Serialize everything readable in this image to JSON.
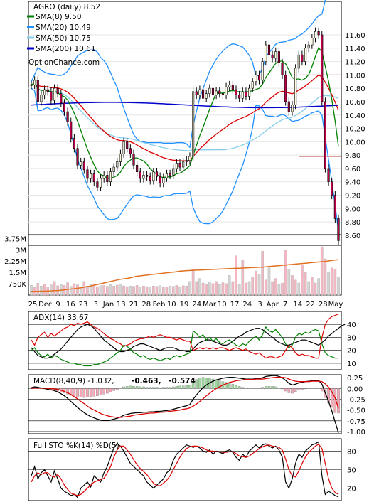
{
  "chart_data": [
    {
      "type": "candlestick",
      "title": "AGRO (daily) 8.52",
      "watermark": "OptionChance.com",
      "ylim": [
        8.45,
        12.1
      ],
      "y_ticks": [
        "11.60",
        "11.40",
        "11.20",
        "11.00",
        "10.80",
        "10.60",
        "10.40",
        "10.20",
        "10.00",
        "9.80",
        "9.60",
        "9.40",
        "9.20",
        "9.00",
        "8.80",
        "8.60"
      ],
      "grid": true,
      "legend_position": "top-left",
      "legend": [
        {
          "label": "SMA(8) 9.50",
          "color": "#008000"
        },
        {
          "label": "SMA(20) 10.49",
          "color": "#1e90ff"
        },
        {
          "label": "SMA(50) 10.75",
          "color": "#87ceeb"
        },
        {
          "label": "SMA(200) 10.61",
          "color": "#0000cd"
        }
      ],
      "reference_lines": [
        11.0,
        9.78
      ],
      "ohlc_close": [
        10.85,
        10.92,
        10.6,
        10.7,
        10.78,
        10.75,
        10.62,
        10.8,
        10.72,
        10.58,
        10.45,
        10.3,
        10.05,
        9.9,
        9.65,
        9.7,
        9.58,
        9.45,
        9.52,
        9.4,
        9.32,
        9.45,
        9.5,
        9.4,
        9.55,
        9.62,
        9.7,
        9.82,
        10.0,
        9.9,
        9.82,
        9.65,
        9.55,
        9.45,
        9.5,
        9.48,
        9.42,
        9.55,
        9.48,
        9.38,
        9.46,
        9.52,
        9.5,
        9.6,
        9.68,
        9.62,
        9.7,
        9.72,
        9.78,
        10.75,
        10.7,
        10.78,
        10.65,
        10.72,
        10.8,
        10.7,
        10.76,
        10.72,
        10.7,
        10.82,
        10.85,
        10.78,
        10.7,
        10.65,
        10.75,
        10.68,
        10.8,
        10.9,
        11.0,
        10.92,
        11.2,
        11.45,
        11.3,
        11.25,
        11.35,
        11.18,
        11.0,
        10.6,
        10.45,
        10.55,
        11.1,
        11.3,
        11.2,
        11.4,
        11.45,
        11.55,
        11.65,
        11.6,
        10.6,
        9.6,
        9.4,
        9.2,
        8.85,
        8.52
      ]
    },
    {
      "type": "bar",
      "title": "Volume",
      "y_ticks": [
        "3.75M",
        "3M",
        "2.25M",
        "1.5M",
        "750K"
      ],
      "ylim": [
        0,
        4000000
      ],
      "moving_average_color": "#e07020",
      "values": [
        650000,
        500000,
        780000,
        600000,
        720000,
        550000,
        680000,
        900000,
        620000,
        700000,
        640000,
        820000,
        580000,
        760000,
        680000,
        540000,
        900000,
        600000,
        700000,
        750000,
        560000,
        620000,
        640000,
        580000,
        700000,
        600000,
        660000,
        720000,
        610000,
        560000,
        600000,
        580000,
        640000,
        520000,
        600000,
        560000,
        540000,
        600000,
        580000,
        620000,
        560000,
        540000,
        600000,
        580000,
        640000,
        560000,
        620000,
        600000,
        900000,
        1700000,
        900000,
        1100000,
        800000,
        700000,
        860000,
        760000,
        900000,
        700000,
        820000,
        760000,
        1300000,
        900000,
        2600000,
        700000,
        2300000,
        800000,
        900000,
        1200000,
        1600000,
        1400000,
        2900000,
        1000000,
        1800000,
        900000,
        1100000,
        700000,
        800000,
        3000000,
        1700000,
        1300000,
        1000000,
        800000,
        2000000,
        1500000,
        900000,
        1200000,
        800000,
        1100000,
        3200000,
        2400000,
        1500000,
        1800000,
        1700000,
        1200000
      ],
      "ma_values": [
        250000,
        250000,
        250000,
        260000,
        260000,
        270000,
        280000,
        290000,
        300000,
        320000,
        350000,
        380000,
        400000,
        420000,
        450000,
        480000,
        520000,
        560000,
        600000,
        650000,
        700000,
        750000,
        800000,
        850000,
        900000,
        950000,
        1000000,
        1050000,
        1080000,
        1100000,
        1150000,
        1200000,
        1250000,
        1270000,
        1300000,
        1320000,
        1350000,
        1380000,
        1400000,
        1420000,
        1450000,
        1480000,
        1500000,
        1520000,
        1550000,
        1580000,
        1600000,
        1620000,
        1630000,
        1640000,
        1650000,
        1660000,
        1670000,
        1680000,
        1690000,
        1700000,
        1710000,
        1720000,
        1730000,
        1740000,
        1750000,
        1760000,
        1770000,
        1780000,
        1790000,
        1800000,
        1810000,
        1820000,
        1830000,
        1840000,
        1850000,
        1870000,
        1890000,
        1910000,
        1930000,
        1950000,
        1970000,
        1990000,
        2010000,
        2030000,
        2050000,
        2070000,
        2090000,
        2110000,
        2130000,
        2150000,
        2170000,
        2190000,
        2210000,
        2230000,
        2260000,
        2290000,
        2320000,
        2350000
      ]
    },
    {
      "type": "line",
      "title": "ADX(14) 33.67",
      "ylim": [
        5,
        50
      ],
      "y_ticks": [
        "40",
        "30",
        "20",
        "10"
      ],
      "series": [
        {
          "name": "ADX",
          "color": "#000000",
          "values": [
            22,
            19,
            16,
            15,
            14,
            14,
            15,
            17,
            19,
            21,
            24,
            27,
            30,
            33,
            36,
            38,
            39,
            40,
            39,
            37,
            34,
            31,
            28,
            26,
            24,
            22,
            20,
            19,
            19,
            20,
            21,
            23,
            24,
            25,
            25,
            24,
            23,
            22,
            21,
            20,
            21,
            22,
            22,
            22,
            21,
            20,
            20,
            19,
            19,
            21,
            24,
            26,
            27,
            28,
            28,
            27,
            26,
            25,
            24,
            24,
            25,
            27,
            29,
            31,
            32,
            34,
            35,
            36,
            37,
            37,
            36,
            34,
            32,
            30,
            28,
            26,
            25,
            24,
            24,
            25,
            26,
            27,
            28,
            28,
            27,
            26,
            25,
            24,
            26,
            28,
            31,
            33,
            35,
            37,
            39,
            40
          ]
        },
        {
          "name": "+DI",
          "color": "#008000",
          "values": [
            20,
            22,
            18,
            16,
            15,
            17,
            14,
            16,
            15,
            13,
            12,
            11,
            10,
            10,
            9,
            9,
            8,
            8,
            8,
            9,
            9,
            10,
            11,
            12,
            14,
            16,
            18,
            20,
            24,
            23,
            21,
            18,
            17,
            15,
            16,
            14,
            13,
            14,
            13,
            12,
            13,
            14,
            13,
            15,
            16,
            15,
            16,
            17,
            18,
            35,
            33,
            30,
            32,
            28,
            30,
            27,
            29,
            26,
            25,
            27,
            28,
            26,
            24,
            23,
            25,
            24,
            27,
            29,
            31,
            28,
            32,
            38,
            35,
            34,
            36,
            33,
            30,
            25,
            22,
            24,
            30,
            33,
            32,
            34,
            33,
            35,
            36,
            35,
            25,
            18,
            16,
            15,
            14,
            14
          ]
        },
        {
          "name": "-DI",
          "color": "#dd0000",
          "values": [
            28,
            24,
            30,
            32,
            34,
            30,
            33,
            31,
            33,
            35,
            37,
            38,
            40,
            39,
            41,
            40,
            41,
            42,
            40,
            38,
            37,
            35,
            33,
            31,
            29,
            28,
            26,
            25,
            23,
            24,
            25,
            27,
            28,
            29,
            29,
            30,
            31,
            30,
            31,
            32,
            31,
            30,
            30,
            29,
            28,
            29,
            28,
            27,
            27,
            20,
            21,
            22,
            21,
            22,
            21,
            22,
            21,
            22,
            22,
            21,
            20,
            21,
            22,
            21,
            20,
            21,
            19,
            18,
            17,
            18,
            16,
            14,
            15,
            15,
            14,
            15,
            16,
            20,
            24,
            22,
            18,
            16,
            17,
            16,
            16,
            15,
            14,
            14,
            30,
            40,
            44,
            46,
            47,
            48
          ]
        }
      ]
    },
    {
      "type": "bar",
      "title": "MACD(8,40,9) -1.032, -0.463, -0.574",
      "title_parts": [
        "MACD(8,40,9) -1.032,",
        "-0.463,",
        "-0.574"
      ],
      "ylim": [
        -1.05,
        0.32
      ],
      "y_ticks": [
        "0.25",
        "0.00",
        "-0.25",
        "-0.50",
        "-0.75",
        "-1.00"
      ],
      "series": [
        {
          "name": "MACD",
          "color": "#000000",
          "values": [
            0.02,
            0.04,
            0.03,
            0.01,
            0.0,
            -0.02,
            -0.03,
            -0.05,
            -0.08,
            -0.12,
            -0.17,
            -0.23,
            -0.3,
            -0.37,
            -0.44,
            -0.5,
            -0.56,
            -0.61,
            -0.65,
            -0.68,
            -0.71,
            -0.73,
            -0.74,
            -0.74,
            -0.73,
            -0.71,
            -0.69,
            -0.66,
            -0.62,
            -0.6,
            -0.58,
            -0.57,
            -0.56,
            -0.56,
            -0.55,
            -0.55,
            -0.54,
            -0.54,
            -0.53,
            -0.53,
            -0.52,
            -0.51,
            -0.5,
            -0.48,
            -0.46,
            -0.44,
            -0.42,
            -0.4,
            -0.37,
            -0.25,
            -0.15,
            -0.06,
            0.02,
            0.08,
            0.13,
            0.17,
            0.2,
            0.22,
            0.24,
            0.25,
            0.26,
            0.26,
            0.25,
            0.24,
            0.23,
            0.22,
            0.22,
            0.22,
            0.23,
            0.23,
            0.25,
            0.28,
            0.29,
            0.3,
            0.3,
            0.28,
            0.25,
            0.19,
            0.12,
            0.08,
            0.1,
            0.13,
            0.14,
            0.16,
            0.17,
            0.18,
            0.19,
            0.19,
            0.1,
            -0.1,
            -0.3,
            -0.52,
            -0.78,
            -1.03
          ]
        },
        {
          "name": "Signal",
          "color": "#dd0000",
          "values": [
            0.0,
            0.01,
            0.01,
            0.01,
            0.01,
            0.0,
            0.0,
            -0.01,
            -0.02,
            -0.04,
            -0.07,
            -0.1,
            -0.14,
            -0.19,
            -0.24,
            -0.3,
            -0.35,
            -0.41,
            -0.46,
            -0.5,
            -0.54,
            -0.58,
            -0.61,
            -0.63,
            -0.65,
            -0.66,
            -0.67,
            -0.67,
            -0.66,
            -0.65,
            -0.64,
            -0.62,
            -0.61,
            -0.6,
            -0.59,
            -0.58,
            -0.57,
            -0.57,
            -0.56,
            -0.55,
            -0.55,
            -0.54,
            -0.53,
            -0.52,
            -0.51,
            -0.5,
            -0.48,
            -0.47,
            -0.45,
            -0.41,
            -0.36,
            -0.3,
            -0.24,
            -0.17,
            -0.11,
            -0.05,
            0.0,
            0.04,
            0.08,
            0.11,
            0.14,
            0.16,
            0.18,
            0.19,
            0.2,
            0.21,
            0.21,
            0.21,
            0.22,
            0.22,
            0.22,
            0.23,
            0.24,
            0.25,
            0.26,
            0.26,
            0.26,
            0.25,
            0.22,
            0.19,
            0.17,
            0.16,
            0.16,
            0.16,
            0.16,
            0.17,
            0.17,
            0.17,
            0.16,
            0.11,
            0.03,
            -0.08,
            -0.22,
            -0.46
          ]
        }
      ]
    },
    {
      "type": "line",
      "title": "Full STO %K(14) %D(5)",
      "ylim": [
        0,
        100
      ],
      "y_ticks": [
        "80",
        "50",
        "20"
      ],
      "reference_lines": [
        80,
        50,
        20
      ],
      "series": [
        {
          "name": "%K",
          "color": "#000000",
          "values": [
            40,
            55,
            35,
            45,
            50,
            40,
            30,
            48,
            35,
            20,
            15,
            12,
            8,
            10,
            5,
            20,
            25,
            30,
            22,
            40,
            35,
            30,
            45,
            55,
            70,
            85,
            92,
            88,
            80,
            70,
            60,
            55,
            50,
            45,
            40,
            30,
            25,
            20,
            25,
            30,
            35,
            45,
            50,
            65,
            75,
            80,
            85,
            90,
            88,
            86,
            88,
            85,
            80,
            78,
            82,
            75,
            80,
            78,
            76,
            80,
            82,
            78,
            70,
            65,
            75,
            70,
            80,
            85,
            90,
            85,
            90,
            92,
            88,
            85,
            88,
            82,
            70,
            30,
            20,
            35,
            60,
            75,
            70,
            80,
            85,
            90,
            92,
            95,
            40,
            10,
            15,
            12,
            8,
            6
          ]
        },
        {
          "name": "%D",
          "color": "#dd0000",
          "values": [
            30,
            40,
            45,
            42,
            45,
            45,
            40,
            38,
            42,
            35,
            25,
            18,
            12,
            10,
            8,
            10,
            15,
            20,
            25,
            30,
            32,
            34,
            36,
            45,
            55,
            70,
            82,
            88,
            88,
            82,
            75,
            66,
            58,
            52,
            47,
            42,
            35,
            28,
            24,
            24,
            28,
            33,
            40,
            50,
            60,
            70,
            78,
            84,
            87,
            88,
            88,
            87,
            85,
            82,
            80,
            80,
            79,
            79,
            78,
            78,
            79,
            79,
            76,
            72,
            71,
            70,
            72,
            76,
            80,
            84,
            87,
            89,
            90,
            88,
            87,
            86,
            82,
            67,
            50,
            40,
            38,
            48,
            60,
            70,
            78,
            83,
            88,
            91,
            84,
            60,
            35,
            20,
            13,
            10
          ]
        }
      ]
    },
    {
      "type": "axis",
      "x_tick_labels": [
        "25",
        "Dec",
        "9",
        "16",
        "23",
        "3",
        "Jan",
        "13",
        "21",
        "28",
        "Feb",
        "10",
        "19",
        "24",
        "Mar",
        "10",
        "17",
        "24",
        "3",
        "Apr",
        "7",
        "14",
        "22",
        "28",
        "May"
      ],
      "x_tick_labels_lower": [
        "25",
        "Dec",
        "9",
        "16",
        "23",
        "3",
        "Jan",
        "13",
        "21",
        "28",
        "Feb",
        "10",
        "19",
        "24",
        "Mar",
        "10",
        "17",
        "24",
        "3",
        "Apr",
        "7",
        "14",
        "22",
        "28",
        "May"
      ]
    }
  ]
}
